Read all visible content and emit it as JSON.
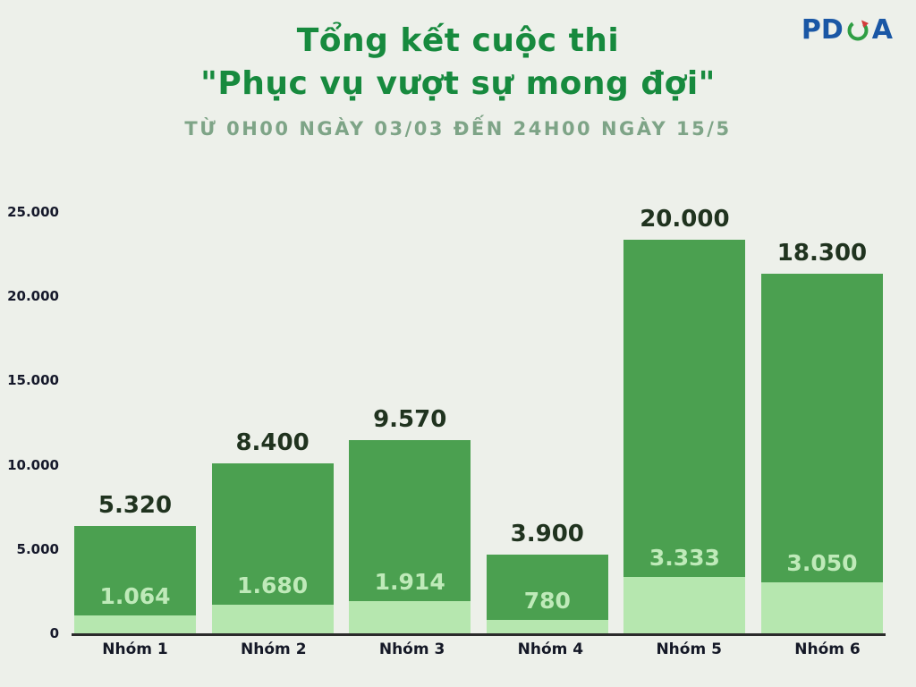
{
  "page": {
    "title_line1": "Tổng kết cuộc thi",
    "title_line2": "\"Phục vụ vượt sự mong đợi\"",
    "subtitle": "TỪ 0H00 NGÀY 03/03 ĐẾN 24H00 NGÀY 15/5",
    "logo": {
      "prefix": "PD",
      "suffix": "A"
    }
  },
  "colors": {
    "background": "#edf0ea",
    "title_green": "#178a3e",
    "subtitle_green": "#7ea487",
    "bar_dark_green": "#4ba050",
    "bar_light_green": "#b6e7af",
    "inner_label": "#bfeab9",
    "logo_blue": "#1a57a5",
    "logo_red": "#d23b3b"
  },
  "chart_data": {
    "type": "bar",
    "stacked": true,
    "title": "Tổng kết cuộc thi \"Phục vụ vượt sự mong đợi\"",
    "subtitle": "TỪ 0H00 NGÀY 03/03 ĐẾN 24H00 NGÀY 15/5",
    "categories": [
      "Nhóm 1",
      "Nhóm 2",
      "Nhóm 3",
      "Nhóm 4",
      "Nhóm 5",
      "Nhóm 6"
    ],
    "series": [
      {
        "name": "light-bottom-segment",
        "values": [
          1064,
          1680,
          1914,
          780,
          3333,
          3050
        ],
        "labels": [
          "1.064",
          "1.680",
          "1.914",
          "780",
          "3.333",
          "3.050"
        ]
      },
      {
        "name": "dark-top-segment",
        "values": [
          5320,
          8400,
          9570,
          3900,
          20000,
          18300
        ],
        "labels": [
          "5.320",
          "8.400",
          "9.570",
          "3.900",
          "20.000",
          "18.300"
        ]
      }
    ],
    "ylim": [
      0,
      25000
    ],
    "y_tick_values": [
      25000,
      20000,
      15000,
      10000,
      5000,
      0
    ],
    "y_tick_labels": [
      "25.000",
      "20.000",
      "15.000",
      "10.000",
      "5.000",
      "0"
    ],
    "grid": false,
    "legend": "none"
  }
}
